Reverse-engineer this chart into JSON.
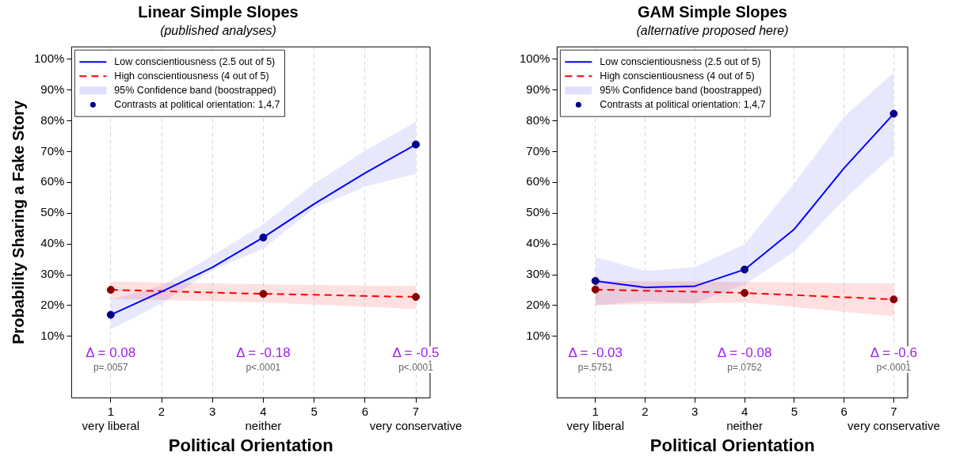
{
  "chart_data": [
    {
      "type": "line",
      "title": "Linear Simple Slopes",
      "subtitle": "(published analyses)",
      "xlabel": "Political Orientation",
      "ylabel": "Probability Sharing a Fake Story",
      "x": [
        1,
        2,
        3,
        4,
        5,
        6,
        7
      ],
      "xlim": [
        0.23,
        7.28
      ],
      "xticks": [
        {
          "value": 1,
          "label": "1\nvery liberal"
        },
        2,
        3,
        {
          "value": 4,
          "label": "4\nneither"
        },
        5,
        6,
        {
          "value": 7,
          "label": "7\nvery conservative"
        }
      ],
      "ylim": [
        -10,
        104
      ],
      "yticks": [
        {
          "value": 10,
          "label": "10%"
        },
        {
          "value": 20,
          "label": "20%"
        },
        {
          "value": 30,
          "label": "30%"
        },
        {
          "value": 40,
          "label": "40%"
        },
        {
          "value": 50,
          "label": "50%"
        },
        {
          "value": 60,
          "label": "60%"
        },
        {
          "value": 70,
          "label": "70%"
        },
        {
          "value": 80,
          "label": "80%"
        },
        {
          "value": 90,
          "label": "90%"
        },
        {
          "value": 100,
          "label": "100%"
        }
      ],
      "grid": "x",
      "legend": "top left",
      "series": [
        {
          "name": "Low conscientiousness (2.5 out of 5)",
          "color": "#0000ff",
          "values": [
            17,
            24.5,
            32.4,
            42.1,
            53,
            63,
            72.3
          ]
        },
        {
          "name": "High conscientiousness (4 out of 5)",
          "color": "#ff0000",
          "line_style": "dashed",
          "values": [
            25.1,
            24.7,
            24.2,
            23.8,
            23.5,
            23.1,
            22.8
          ],
          "lower": [
            22.1,
            21.8,
            21.4,
            21,
            20.3,
            19.6,
            18.9
          ],
          "upper": [
            27.8,
            27.5,
            27.2,
            26.9,
            26.7,
            26.5,
            26.4
          ]
        },
        {
          "type": "area",
          "name": "95% Confidence band (boostrapped)",
          "color": "#e0e0fc",
          "values": [
            null,
            null,
            null,
            null,
            null,
            null,
            null
          ],
          "lower": [
            12.3,
            20.7,
            31.5,
            38.5,
            51.6,
            58.6,
            62.8
          ],
          "upper": [
            22,
            26.4,
            36.2,
            46.4,
            59.5,
            70.3,
            79.6
          ]
        },
        {
          "type": "scatter",
          "name": "Contrasts at political orientation: 1,4,7",
          "color": "#00008b",
          "x": [
            1,
            4,
            7,
            1,
            4,
            7
          ],
          "values": [
            17,
            42.1,
            72.3,
            25.1,
            23.8,
            22.8
          ],
          "colors": [
            "#00008b",
            "#00008b",
            "#00008b",
            "#8b0000",
            "#8b0000",
            "#8b0000"
          ]
        }
      ],
      "annotations": [
        "Δ = 0.08",
        "p=.0057",
        "Δ = -0.18",
        "p<.0001",
        "Δ = -0.5",
        "p<.0001"
      ]
    },
    {
      "type": "line",
      "title": "GAM Simple Slopes",
      "subtitle": "(alternative proposed here)",
      "xlabel": "Political Orientation",
      "x": [
        1,
        2,
        3,
        4,
        5,
        6,
        7
      ],
      "xlim": [
        0.23,
        7.28
      ],
      "xticks": [
        {
          "value": 1,
          "label": "1\nvery liberal"
        },
        2,
        3,
        {
          "value": 4,
          "label": "4\nneither"
        },
        5,
        6,
        {
          "value": 7,
          "label": "7\nvery conservative"
        }
      ],
      "ylim": [
        -10,
        104
      ],
      "yticks": [
        {
          "value": 10,
          "label": "10%"
        },
        {
          "value": 20,
          "label": "20%"
        },
        {
          "value": 30,
          "label": "30%"
        },
        {
          "value": 40,
          "label": "40%"
        },
        {
          "value": 50,
          "label": "50%"
        },
        {
          "value": 60,
          "label": "60%"
        },
        {
          "value": 70,
          "label": "70%"
        },
        {
          "value": 80,
          "label": "80%"
        },
        {
          "value": 90,
          "label": "90%"
        },
        {
          "value": 100,
          "label": "100%"
        }
      ],
      "grid": "x",
      "legend": "top left",
      "series": [
        {
          "name": "Low conscientiousness (2.5 out of 5)",
          "color": "#0000ff",
          "values": [
            28,
            25.9,
            26.3,
            31.7,
            44.8,
            64.6,
            82.3
          ]
        },
        {
          "name": "High conscientiousness (4 out of 5)",
          "color": "#ff0000",
          "line_style": "dashed",
          "values": [
            25.2,
            24.8,
            24.5,
            24.1,
            23.4,
            22.7,
            22
          ],
          "lower": [
            20.1,
            20.4,
            20.7,
            21,
            19.5,
            18,
            16.5
          ],
          "upper": [
            28.1,
            27.9,
            27.8,
            27.6,
            27.5,
            27.3,
            27.2
          ]
        },
        {
          "type": "area",
          "name": "95% Confidence band (boostrapped)",
          "color": "#e0e0fc",
          "values": [
            null,
            null,
            null,
            null,
            null,
            null,
            null
          ],
          "lower": [
            20.1,
            21.4,
            20.7,
            26.8,
            37.5,
            54.4,
            69.1
          ],
          "upper": [
            35.8,
            31.2,
            32.5,
            39.9,
            59.7,
            81.3,
            95.6
          ]
        },
        {
          "type": "scatter",
          "name": "Contrasts at political orientation: 1,4,7",
          "color": "#00008b",
          "x": [
            1,
            4,
            7,
            1,
            4,
            7
          ],
          "values": [
            28,
            31.7,
            82.3,
            25.2,
            24.1,
            22
          ],
          "colors": [
            "#00008b",
            "#00008b",
            "#00008b",
            "#8b0000",
            "#8b0000",
            "#8b0000"
          ]
        }
      ],
      "annotations": [
        "Δ = -0.03",
        "p=.5751",
        "Δ = -0.08",
        "p=.0752",
        "Δ = -0.6",
        "p<.0001"
      ]
    }
  ]
}
